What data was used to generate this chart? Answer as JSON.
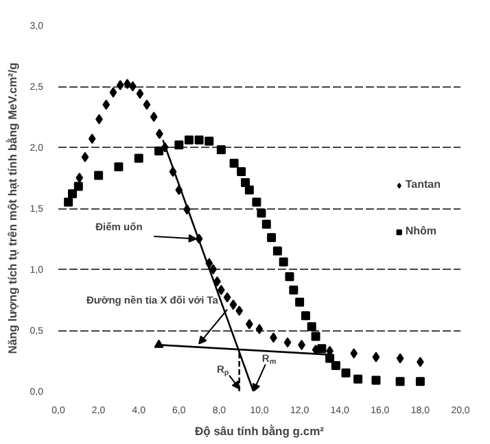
{
  "chart_data": {
    "type": "scatter",
    "xlabel": "Độ sâu tính bằng g.cm²",
    "ylabel": "Năng lượng tích tụ trên một hạt tính bằng MeV.cm²/g",
    "xlim": [
      0,
      20
    ],
    "ylim": [
      0,
      3
    ],
    "xticks": [
      {
        "value": 0,
        "label": "0,0"
      },
      {
        "value": 2,
        "label": "2,0"
      },
      {
        "value": 4,
        "label": "4,0"
      },
      {
        "value": 6,
        "label": "6,0"
      },
      {
        "value": 8,
        "label": "8,0"
      },
      {
        "value": 10,
        "label": "10,0"
      },
      {
        "value": 12,
        "label": "12,0"
      },
      {
        "value": 14,
        "label": "14,0"
      },
      {
        "value": 16,
        "label": "16,0"
      },
      {
        "value": 18,
        "label": "18,0"
      },
      {
        "value": 20,
        "label": "20,0"
      }
    ],
    "yticks": [
      {
        "value": 0,
        "label": "0,0"
      },
      {
        "value": 0.5,
        "label": "0,5"
      },
      {
        "value": 1,
        "label": "1,0"
      },
      {
        "value": 1.5,
        "label": "1,5"
      },
      {
        "value": 2,
        "label": "2,0"
      },
      {
        "value": 2.5,
        "label": "2,5"
      },
      {
        "value": 3,
        "label": "3,0"
      }
    ],
    "grid": "y",
    "legend": "right",
    "series": [
      {
        "name": "Tantan",
        "color": "#000000",
        "marker": "diamond",
        "x": [
          1.05,
          1.33,
          1.68,
          2.03,
          2.38,
          2.73,
          3.08,
          3.43,
          3.7,
          4.06,
          4.4,
          4.75,
          5.03,
          5.3,
          5.7,
          6.0,
          6.4,
          7.0,
          7.5,
          7.7,
          7.9,
          8.1,
          8.4,
          8.7,
          9.0,
          9.5,
          10.0,
          10.7,
          11.4,
          12.1,
          12.8,
          13.5,
          14.7,
          15.8,
          17.0,
          18.0
        ],
        "values": [
          1.75,
          1.92,
          2.07,
          2.23,
          2.35,
          2.45,
          2.51,
          2.52,
          2.5,
          2.44,
          2.35,
          2.25,
          2.11,
          2.0,
          1.8,
          1.65,
          1.49,
          1.25,
          1.05,
          1.0,
          0.9,
          0.83,
          0.77,
          0.71,
          0.66,
          0.55,
          0.51,
          0.44,
          0.4,
          0.38,
          0.34,
          0.33,
          0.31,
          0.28,
          0.27,
          0.24
        ]
      },
      {
        "name": "Nhôm",
        "color": "#000000",
        "marker": "square",
        "x": [
          0.5,
          0.7,
          1.0,
          2.0,
          3.0,
          4.0,
          5.0,
          6.0,
          6.5,
          7.0,
          7.5,
          8.1,
          8.74,
          9.1,
          9.3,
          9.5,
          9.86,
          10.1,
          10.35,
          10.6,
          10.9,
          11.2,
          11.5,
          11.7,
          12.0,
          12.3,
          12.6,
          12.8,
          13.1,
          13.5,
          13.8,
          14.3,
          14.9,
          15.8,
          17.0,
          18.0
        ],
        "values": [
          1.55,
          1.62,
          1.68,
          1.77,
          1.84,
          1.91,
          1.97,
          2.02,
          2.06,
          2.06,
          2.05,
          1.98,
          1.87,
          1.8,
          1.71,
          1.65,
          1.55,
          1.46,
          1.37,
          1.26,
          1.15,
          1.06,
          0.94,
          0.83,
          0.73,
          0.62,
          0.53,
          0.45,
          0.35,
          0.27,
          0.21,
          0.15,
          0.1,
          0.09,
          0.08,
          0.08
        ]
      },
      {
        "type": "line",
        "color": "#000000",
        "x": [
          5.2,
          9.7
        ],
        "values": [
          2.06,
          0
        ]
      },
      {
        "type": "line",
        "color": "#000000",
        "marker": "triangle",
        "x": [
          5.0,
          13.5
        ],
        "values": [
          0.38,
          0.3
        ]
      },
      {
        "type": "line",
        "color": "#000000",
        "line_style": "dashed",
        "x": [
          9.0,
          9.0
        ],
        "values": [
          0,
          0.33
        ]
      }
    ],
    "annotations": [
      {
        "text": "Điểm uốn",
        "x": 6.85,
        "y": 1.25
      },
      {
        "text": "Đường nền tia X đối với Ta",
        "x": 7.0,
        "y": 0.39
      },
      {
        "text": "R$_{p}$",
        "x": 9.0,
        "y": 0.02
      },
      {
        "text": "R$_{m}$",
        "x": 9.7,
        "y": 0.0
      }
    ]
  }
}
